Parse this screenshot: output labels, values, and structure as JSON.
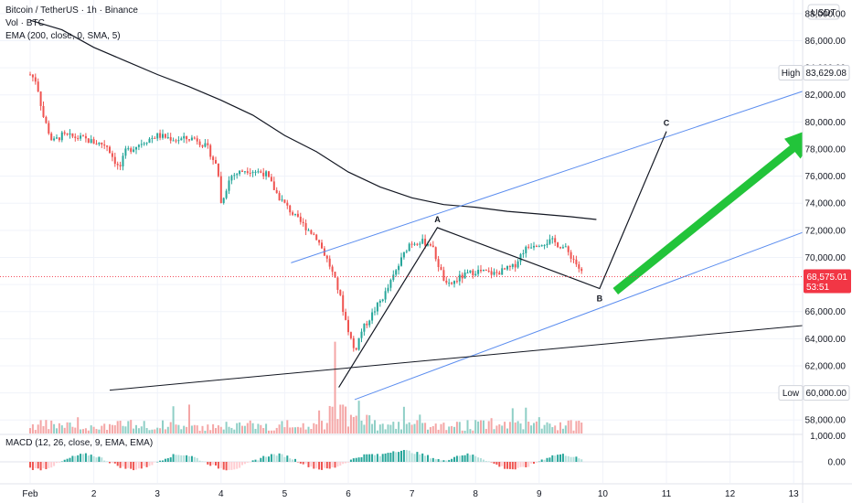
{
  "legend": {
    "title": "Bitcoin / TetherUS · 1h · Binance",
    "volume": "Vol · BTC",
    "ema": "EMA (200, close, 0, SMA, 5)",
    "macd": "MACD (12, 26, close, 9, EMA, EMA)"
  },
  "colors": {
    "up": "#26a69a",
    "down": "#ef5350",
    "vol_up": "#8fcfc6",
    "vol_down": "#f4a6a6",
    "ema": "#131722",
    "channel": "#5b8def",
    "arrow": "#22c43a",
    "price_tag": "#f23645",
    "trend": "#131722"
  },
  "chart_data": {
    "type": "candlestick",
    "symbol": "Bitcoin / TetherUS",
    "timeframe": "1h",
    "exchange": "Binance",
    "currency": "USDT",
    "x_ticks": [
      "Feb",
      "2",
      "3",
      "4",
      "5",
      "6",
      "7",
      "8",
      "9",
      "10",
      "11",
      "12",
      "13"
    ],
    "y_ticks": [
      "58,000.00",
      "60,000.00",
      "62,000.00",
      "64,000.00",
      "66,000.00",
      "68,000.00",
      "70,000.00",
      "72,000.00",
      "74,000.00",
      "76,000.00",
      "78,000.00",
      "80,000.00",
      "82,000.00",
      "84,000.00",
      "86,000.00",
      "88,000.00"
    ],
    "ylim": [
      57000,
      89000
    ],
    "xlim_days": [
      1,
      13.9
    ],
    "price_path": [
      [
        1.0,
        83500
      ],
      [
        1.1,
        83000
      ],
      [
        1.2,
        80500
      ],
      [
        1.35,
        78500
      ],
      [
        1.5,
        79000
      ],
      [
        1.8,
        78800
      ],
      [
        2.0,
        78500
      ],
      [
        2.2,
        78300
      ],
      [
        2.4,
        76500
      ],
      [
        2.5,
        77800
      ],
      [
        2.8,
        78600
      ],
      [
        3.0,
        79000
      ],
      [
        3.3,
        78700
      ],
      [
        3.6,
        78800
      ],
      [
        3.8,
        78000
      ],
      [
        3.95,
        76500
      ],
      [
        4.0,
        74000
      ],
      [
        4.15,
        76000
      ],
      [
        4.4,
        76500
      ],
      [
        4.7,
        76200
      ],
      [
        4.9,
        74500
      ],
      [
        5.2,
        72800
      ],
      [
        5.5,
        71500
      ],
      [
        5.7,
        69500
      ],
      [
        5.85,
        67500
      ],
      [
        5.95,
        65500
      ],
      [
        6.1,
        63000
      ],
      [
        6.2,
        64500
      ],
      [
        6.4,
        66000
      ],
      [
        6.6,
        67500
      ],
      [
        6.8,
        69500
      ],
      [
        6.95,
        71000
      ],
      [
        7.1,
        71200
      ],
      [
        7.3,
        71000
      ],
      [
        7.45,
        69000
      ],
      [
        7.55,
        67800
      ],
      [
        7.75,
        68500
      ],
      [
        8.0,
        69000
      ],
      [
        8.3,
        68800
      ],
      [
        8.6,
        69300
      ],
      [
        8.75,
        70500
      ],
      [
        8.9,
        71000
      ],
      [
        9.2,
        71200
      ],
      [
        9.4,
        70700
      ],
      [
        9.55,
        69800
      ],
      [
        9.7,
        68575
      ]
    ],
    "ema200": [
      [
        1.0,
        87500
      ],
      [
        1.5,
        86800
      ],
      [
        2.0,
        85500
      ],
      [
        2.5,
        84500
      ],
      [
        3.0,
        83500
      ],
      [
        3.5,
        82600
      ],
      [
        4.0,
        81600
      ],
      [
        4.5,
        80500
      ],
      [
        5.0,
        79000
      ],
      [
        5.5,
        77800
      ],
      [
        6.0,
        76300
      ],
      [
        6.5,
        75200
      ],
      [
        7.0,
        74400
      ],
      [
        7.5,
        73900
      ],
      [
        8.0,
        73700
      ],
      [
        8.5,
        73400
      ],
      [
        9.0,
        73200
      ],
      [
        9.5,
        73000
      ],
      [
        9.9,
        72800
      ]
    ],
    "wave_points": [
      {
        "label": "",
        "day": 5.85,
        "price": 60400
      },
      {
        "label": "A",
        "day": 7.4,
        "price": 72200
      },
      {
        "label": "B",
        "day": 9.95,
        "price": 67700
      },
      {
        "label": "C",
        "day": 11.0,
        "price": 79300
      }
    ],
    "channel_upper": [
      [
        5.1,
        69600
      ],
      [
        13.8,
        83300
      ]
    ],
    "channel_lower": [
      [
        6.1,
        59500
      ],
      [
        13.8,
        73000
      ]
    ],
    "support_line": [
      [
        2.25,
        60200
      ],
      [
        13.9,
        65300
      ]
    ],
    "arrow": {
      "from": [
        10.2,
        67500
      ],
      "to": [
        13.45,
        79800
      ]
    },
    "last_price": "68,575.01",
    "countdown": "53:51",
    "high": {
      "label": "High",
      "value": "83,629.08",
      "price": 83629.08
    },
    "low": {
      "label": "Low",
      "value": "60,000.00",
      "price": 60000
    },
    "macd_zero_label": "0.00",
    "macd_top_label": "1,000.00"
  }
}
